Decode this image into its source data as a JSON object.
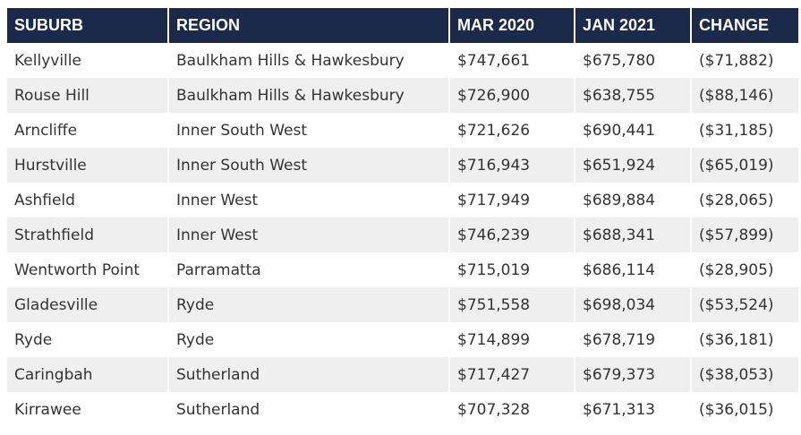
{
  "table": {
    "headers": [
      "SUBURB",
      "REGION",
      "MAR 2020",
      "JAN 2021",
      "CHANGE"
    ],
    "rows": [
      [
        "Kellyville",
        "Baulkham Hills & Hawkesbury",
        "$747,661",
        "$675,780",
        "($71,882)"
      ],
      [
        "Rouse Hill",
        "Baulkham Hills & Hawkesbury",
        "$726,900",
        "$638,755",
        "($88,146)"
      ],
      [
        "Arncliffe",
        "Inner South West",
        "$721,626",
        "$690,441",
        "($31,185)"
      ],
      [
        "Hurstville",
        "Inner South West",
        "$716,943",
        "$651,924",
        "($65,019)"
      ],
      [
        "Ashfield",
        "Inner West",
        "$717,949",
        "$689,884",
        "($28,065)"
      ],
      [
        "Strathfield",
        "Inner West",
        "$746,239",
        "$688,341",
        "($57,899)"
      ],
      [
        "Wentworth Point",
        "Parramatta",
        "$715,019",
        "$686,114",
        "($28,905)"
      ],
      [
        "Gladesville",
        "Ryde",
        "$751,558",
        "$698,034",
        "($53,524)"
      ],
      [
        "Ryde",
        "Ryde",
        "$714,899",
        "$678,719",
        "($36,181)"
      ],
      [
        "Caringbah",
        "Sutherland",
        "$717,427",
        "$679,373",
        "($38,053)"
      ],
      [
        "Kirrawee",
        "Sutherland",
        "$707,328",
        "$671,313",
        "($36,015)"
      ]
    ]
  },
  "colors": {
    "header_bg": "#1b2a4a",
    "header_text": "#ffffff",
    "row_alt_bg": "#efefef",
    "body_text": "#333333"
  }
}
